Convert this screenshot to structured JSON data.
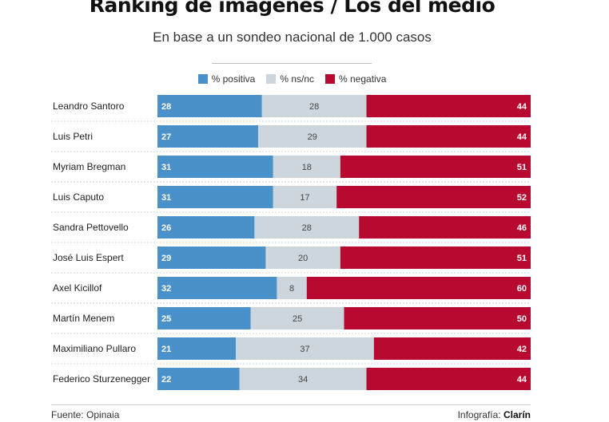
{
  "title": "Ranking de imágenes / Los del medio",
  "subtitle": "En base a un sondeo nacional de 1.000 casos",
  "footer": {
    "source": "Fuente: Opinaia",
    "credit_prefix": "Infografía:",
    "credit_brand": "Clarín"
  },
  "chart_data": {
    "type": "bar",
    "orientation": "horizontal",
    "stacked": true,
    "normalized_to_percent": true,
    "legend_placement": "top",
    "categories": [
      "Leandro Santoro",
      "Luis Petri",
      "Myriam Bregman",
      "Luis Caputo",
      "Sandra Pettovello",
      "José Luis Espert",
      "Axel Kicillof",
      "Martín Menem",
      "Maximiliano Pullaro",
      "Federico Sturzenegger"
    ],
    "series": [
      {
        "name": "% positiva",
        "color": "#4a90c9",
        "label_color": "#ffffff",
        "values": [
          28,
          27,
          31,
          31,
          26,
          29,
          32,
          25,
          21,
          22
        ]
      },
      {
        "name": "% ns/nc",
        "color": "#cdd6dc",
        "label_color": "#444444",
        "values": [
          28,
          29,
          18,
          17,
          28,
          20,
          8,
          25,
          37,
          34
        ]
      },
      {
        "name": "% negativa",
        "color": "#b80930",
        "label_color": "#ffffff",
        "values": [
          44,
          44,
          51,
          52,
          46,
          51,
          60,
          50,
          42,
          44
        ]
      }
    ]
  }
}
